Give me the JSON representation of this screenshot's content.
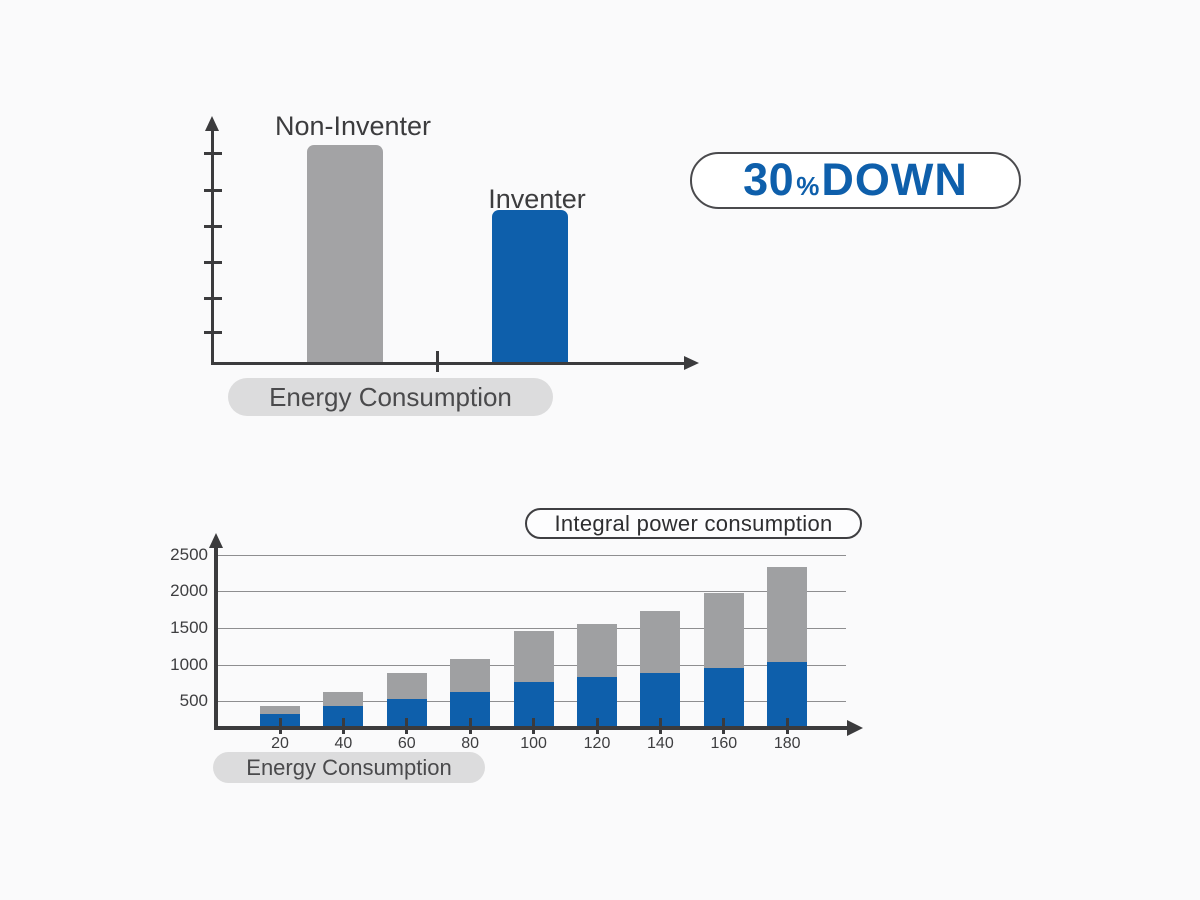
{
  "colors": {
    "blue": "#0e5fab",
    "gray_top_chart": "#a3a3a5",
    "gray_bottom_chart": "#9fa0a2",
    "axis": "#3b3b3d",
    "gridline": "#8e8e90",
    "pill_background": "#dcdcdd",
    "pill_text": "#4a4a4c",
    "badge_border": "#4a4a4d",
    "badge_text": "#0e5fab",
    "background": "#fafafb"
  },
  "badge": {
    "number": "30",
    "percent": "%",
    "word": "DOWN"
  },
  "chart_data": [
    {
      "type": "bar",
      "title": "",
      "categories": [
        "Non-Inventer",
        "Inventer"
      ],
      "values": [
        100,
        70
      ],
      "colors": [
        "#a3a3a5",
        "#0e5fab"
      ],
      "xlabel": "Energy Consumption",
      "ylabel": "",
      "annotation": "30%DOWN",
      "grid": false,
      "axis_ticks": "6 unlabeled ticks on y-axis, 1 unlabeled tick on x-axis"
    },
    {
      "type": "bar",
      "subtype": "stacked",
      "title": "Integral power consumption",
      "categories": [
        "20",
        "40",
        "60",
        "80",
        "100",
        "120",
        "140",
        "160",
        "180"
      ],
      "series": [
        {
          "name": "Inventer",
          "color": "#0e5fab",
          "values": [
            300,
            400,
            500,
            600,
            730,
            800,
            850,
            920,
            1000
          ]
        },
        {
          "name": "Non-Inventer",
          "color": "#9fa0a2",
          "values": [
            100,
            200,
            350,
            450,
            700,
            730,
            850,
            1030,
            1300
          ]
        }
      ],
      "totals": [
        400,
        600,
        850,
        1050,
        1430,
        1530,
        1700,
        1950,
        2300
      ],
      "xlabel": "Energy Consumption",
      "ylabel": "",
      "yticks": [
        500,
        1000,
        1500,
        2000,
        2500
      ],
      "ylim": [
        0,
        2700
      ],
      "grid": true,
      "legend_position": "none"
    }
  ]
}
